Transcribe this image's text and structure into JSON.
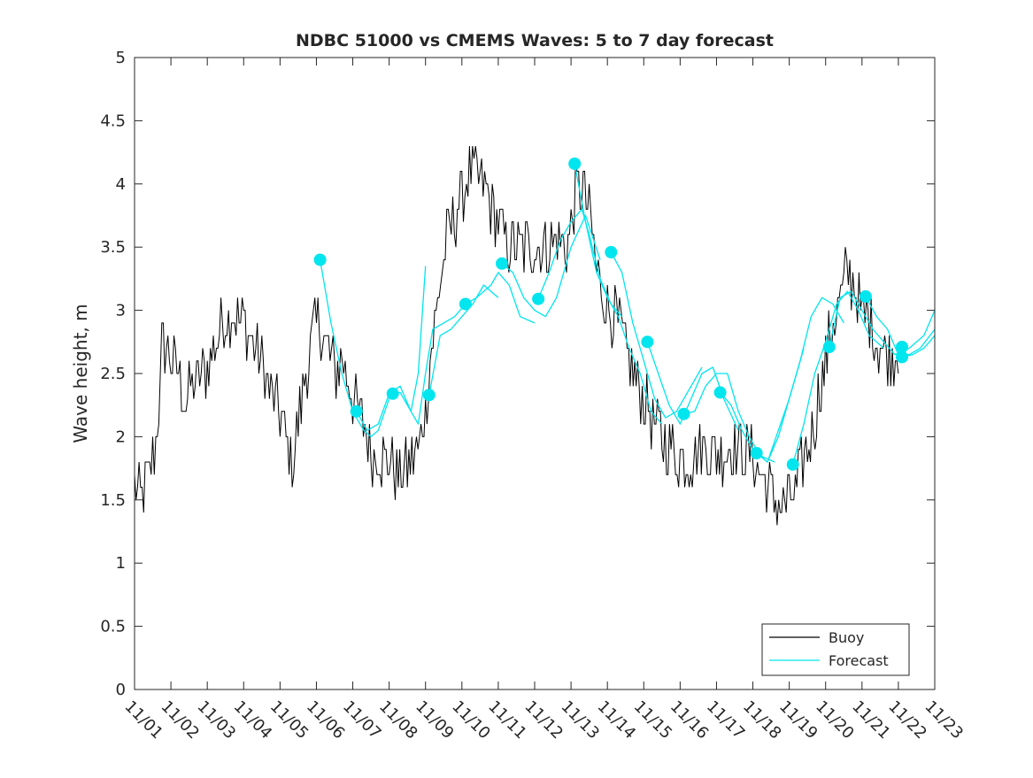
{
  "chart_data": {
    "type": "line",
    "title": "NDBC 51000 vs CMEMS Waves: 5 to 7 day forecast",
    "xlabel": "",
    "ylabel": "Wave height, m",
    "xlim": [
      0,
      22
    ],
    "ylim": [
      0,
      5
    ],
    "yticks": [
      0,
      0.5,
      1,
      1.5,
      2,
      2.5,
      3,
      3.5,
      4,
      4.5,
      5
    ],
    "ytick_labels": [
      "0",
      "0.5",
      "1",
      "1.5",
      "2",
      "2.5",
      "3",
      "3.5",
      "4",
      "4.5",
      "5"
    ],
    "xticks": [
      0,
      1,
      2,
      3,
      4,
      5,
      6,
      7,
      8,
      9,
      10,
      11,
      12,
      13,
      14,
      15,
      16,
      17,
      18,
      19,
      20,
      21,
      22
    ],
    "xtick_labels": [
      "11/01",
      "11/02",
      "11/03",
      "11/04",
      "11/05",
      "11/06",
      "11/07",
      "11/08",
      "11/09",
      "11/10",
      "11/11",
      "11/12",
      "11/13",
      "11/14",
      "11/15",
      "11/16",
      "11/17",
      "11/18",
      "11/19",
      "11/20",
      "11/21",
      "11/22",
      "11/23"
    ],
    "legend": {
      "placement": "bottom-right",
      "entries": [
        {
          "label": "Buoy",
          "color": "#000000"
        },
        {
          "label": "Forecast",
          "color": "#00e5ee"
        }
      ]
    },
    "buoy_anchors": [
      [
        0.0,
        1.6
      ],
      [
        0.2,
        1.55
      ],
      [
        0.4,
        1.7
      ],
      [
        0.55,
        1.9
      ],
      [
        0.7,
        2.3
      ],
      [
        0.75,
        2.7
      ],
      [
        0.9,
        2.7
      ],
      [
        1.2,
        2.5
      ],
      [
        1.4,
        2.3
      ],
      [
        1.6,
        2.4
      ],
      [
        1.8,
        2.5
      ],
      [
        2.0,
        2.55
      ],
      [
        2.2,
        2.7
      ],
      [
        2.4,
        2.9
      ],
      [
        2.7,
        3.0
      ],
      [
        3.0,
        2.9
      ],
      [
        3.3,
        2.7
      ],
      [
        3.6,
        2.5
      ],
      [
        3.8,
        2.3
      ],
      [
        4.0,
        2.2
      ],
      [
        4.2,
        1.95
      ],
      [
        4.35,
        1.75
      ],
      [
        4.5,
        2.1
      ],
      [
        4.7,
        2.5
      ],
      [
        4.9,
        2.8
      ],
      [
        5.1,
        2.9
      ],
      [
        5.3,
        2.7
      ],
      [
        5.5,
        2.5
      ],
      [
        5.7,
        2.6
      ],
      [
        5.9,
        2.4
      ],
      [
        6.1,
        2.2
      ],
      [
        6.3,
        2.1
      ],
      [
        6.5,
        1.9
      ],
      [
        6.7,
        1.85
      ],
      [
        7.0,
        1.8
      ],
      [
        7.3,
        1.7
      ],
      [
        7.6,
        1.8
      ],
      [
        7.8,
        1.9
      ],
      [
        8.0,
        2.2
      ],
      [
        8.2,
        2.8
      ],
      [
        8.4,
        3.2
      ],
      [
        8.6,
        3.6
      ],
      [
        8.8,
        3.75
      ],
      [
        9.0,
        3.9
      ],
      [
        9.2,
        4.1
      ],
      [
        9.5,
        4.0
      ],
      [
        9.8,
        3.85
      ],
      [
        10.0,
        3.7
      ],
      [
        10.2,
        3.55
      ],
      [
        10.5,
        3.5
      ],
      [
        10.8,
        3.5
      ],
      [
        11.0,
        3.5
      ],
      [
        11.3,
        3.5
      ],
      [
        11.6,
        3.55
      ],
      [
        11.9,
        3.5
      ],
      [
        12.1,
        3.9
      ],
      [
        12.3,
        4.0
      ],
      [
        12.5,
        3.8
      ],
      [
        12.7,
        3.3
      ],
      [
        12.9,
        3.1
      ],
      [
        13.1,
        3.0
      ],
      [
        13.4,
        2.8
      ],
      [
        13.7,
        2.5
      ],
      [
        14.0,
        2.3
      ],
      [
        14.3,
        2.1
      ],
      [
        14.6,
        1.95
      ],
      [
        14.9,
        1.85
      ],
      [
        15.2,
        1.8
      ],
      [
        15.5,
        1.9
      ],
      [
        15.8,
        1.9
      ],
      [
        16.1,
        1.85
      ],
      [
        16.4,
        1.9
      ],
      [
        16.7,
        1.9
      ],
      [
        17.0,
        1.85
      ],
      [
        17.3,
        1.65
      ],
      [
        17.6,
        1.5
      ],
      [
        17.8,
        1.45
      ],
      [
        18.0,
        1.5
      ],
      [
        18.2,
        1.6
      ],
      [
        18.4,
        1.8
      ],
      [
        18.6,
        2.0
      ],
      [
        18.8,
        2.3
      ],
      [
        19.0,
        2.6
      ],
      [
        19.2,
        2.9
      ],
      [
        19.4,
        3.1
      ],
      [
        19.6,
        3.3
      ],
      [
        19.8,
        3.2
      ],
      [
        20.0,
        3.0
      ],
      [
        20.2,
        2.9
      ],
      [
        20.4,
        2.75
      ],
      [
        20.6,
        2.7
      ],
      [
        20.8,
        2.65
      ],
      [
        21.0,
        2.7
      ]
    ],
    "forecast_series": [
      {
        "name": "Forecast",
        "x": [
          5.1,
          5.4,
          5.7,
          6.0,
          6.3,
          6.5,
          6.7,
          7.0
        ],
        "y": [
          3.4,
          2.9,
          2.5,
          2.2,
          2.05,
          2.0,
          2.05,
          2.3
        ]
      },
      {
        "name": "Forecast",
        "x": [
          6.1,
          6.4,
          6.7,
          7.0,
          7.3,
          7.6,
          7.8,
          8.0
        ],
        "y": [
          2.2,
          2.05,
          2.1,
          2.34,
          2.4,
          2.2,
          2.5,
          3.35
        ]
      },
      {
        "name": "Forecast",
        "x": [
          7.1,
          7.3,
          7.6,
          7.8,
          8.0,
          8.2,
          8.5,
          8.8,
          9.1
        ],
        "y": [
          2.34,
          2.35,
          2.2,
          2.1,
          2.5,
          2.85,
          2.9,
          2.95,
          3.05
        ]
      },
      {
        "name": "Forecast",
        "x": [
          8.1,
          8.4,
          8.7,
          9.0,
          9.3,
          9.6,
          9.8,
          10.0
        ],
        "y": [
          2.33,
          2.8,
          2.85,
          2.95,
          3.05,
          3.2,
          3.15,
          3.1
        ]
      },
      {
        "name": "Forecast",
        "x": [
          9.1,
          9.4,
          9.6,
          9.8,
          10.0,
          10.3,
          10.6,
          11.0
        ],
        "y": [
          3.05,
          3.1,
          3.15,
          3.2,
          3.3,
          3.2,
          2.95,
          2.9
        ]
      },
      {
        "name": "Forecast",
        "x": [
          10.1,
          10.4,
          10.7,
          11.0,
          11.3,
          11.6,
          12.0,
          12.4,
          12.8
        ],
        "y": [
          3.37,
          3.3,
          3.1,
          3.0,
          2.95,
          3.1,
          3.5,
          3.75,
          3.4
        ]
      },
      {
        "name": "Forecast",
        "x": [
          11.1,
          11.4,
          11.7,
          12.0,
          12.3,
          12.5,
          12.8,
          13.1,
          13.4
        ],
        "y": [
          3.09,
          3.3,
          3.55,
          3.7,
          3.8,
          3.6,
          3.25,
          3.05,
          2.95
        ]
      },
      {
        "name": "Forecast",
        "x": [
          12.1,
          12.4,
          12.7,
          13.0,
          13.3,
          13.6,
          13.9,
          14.2,
          14.5
        ],
        "y": [
          4.16,
          3.7,
          3.3,
          3.1,
          2.95,
          2.7,
          2.5,
          2.2,
          2.1
        ]
      },
      {
        "name": "Forecast",
        "x": [
          13.1,
          13.4,
          13.7,
          14.0,
          14.3,
          14.6,
          14.9,
          15.2,
          15.6
        ],
        "y": [
          3.46,
          3.3,
          2.9,
          2.6,
          2.3,
          2.15,
          2.2,
          2.35,
          2.55
        ]
      },
      {
        "name": "Forecast",
        "x": [
          14.1,
          14.4,
          14.7,
          15.0,
          15.3,
          15.6,
          15.9,
          16.2,
          16.6
        ],
        "y": [
          2.75,
          2.5,
          2.25,
          2.1,
          2.3,
          2.5,
          2.55,
          2.3,
          2.05
        ]
      },
      {
        "name": "Forecast",
        "x": [
          15.1,
          15.4,
          15.7,
          16.0,
          16.3,
          16.6,
          16.9,
          17.2,
          17.6
        ],
        "y": [
          2.18,
          2.2,
          2.4,
          2.5,
          2.5,
          2.2,
          2.0,
          1.85,
          1.8
        ]
      },
      {
        "name": "Forecast",
        "x": [
          16.1,
          16.4,
          16.7,
          17.0,
          17.2,
          17.4,
          17.7,
          18.0,
          18.4
        ],
        "y": [
          2.35,
          2.25,
          2.05,
          1.9,
          1.85,
          1.8,
          2.05,
          2.3,
          2.7
        ]
      },
      {
        "name": "Forecast",
        "x": [
          17.1,
          17.4,
          17.7,
          18.0,
          18.3,
          18.6,
          18.9,
          19.2,
          19.5
        ],
        "y": [
          1.87,
          1.8,
          2.0,
          2.3,
          2.6,
          2.95,
          3.1,
          3.05,
          2.9
        ]
      },
      {
        "name": "Forecast",
        "x": [
          18.1,
          18.4,
          18.7,
          19.0,
          19.3,
          19.6,
          19.9,
          20.2,
          20.6
        ],
        "y": [
          1.78,
          2.1,
          2.5,
          2.75,
          3.05,
          3.15,
          3.0,
          2.8,
          2.7
        ]
      },
      {
        "name": "Forecast",
        "x": [
          19.1,
          19.4,
          19.7,
          20.0,
          20.3,
          20.6,
          20.9,
          21.3,
          21.7,
          22.0
        ],
        "y": [
          2.71,
          3.1,
          3.15,
          3.0,
          2.85,
          2.75,
          2.65,
          2.7,
          2.8,
          3.0
        ]
      },
      {
        "name": "Forecast",
        "x": [
          20.1,
          20.4,
          20.7,
          21.0,
          21.3,
          21.6,
          22.0
        ],
        "y": [
          3.11,
          2.95,
          2.85,
          2.65,
          2.65,
          2.7,
          2.85
        ]
      },
      {
        "name": "Forecast",
        "x": [
          21.1,
          21.4,
          21.7,
          22.0
        ],
        "y": [
          2.63,
          2.65,
          2.7,
          2.8
        ]
      }
    ],
    "forecast_markers": {
      "x": [
        5.1,
        6.1,
        7.1,
        8.1,
        9.1,
        10.1,
        11.1,
        12.1,
        13.1,
        14.1,
        15.1,
        16.1,
        17.1,
        18.1,
        19.1,
        20.1,
        21.1,
        21.1
      ],
      "y": [
        3.4,
        2.2,
        2.34,
        2.33,
        3.05,
        3.37,
        3.09,
        4.16,
        3.46,
        2.75,
        2.18,
        2.35,
        1.87,
        1.78,
        2.71,
        3.11,
        2.71,
        2.63
      ]
    },
    "colors": {
      "buoy": "#000000",
      "forecast": "#00e5ee",
      "axis": "#262626"
    }
  }
}
